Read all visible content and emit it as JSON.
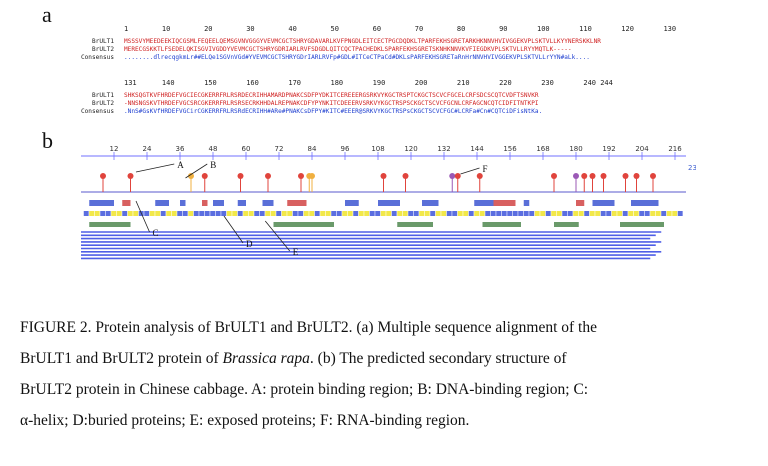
{
  "panels": {
    "a": "a",
    "b": "b"
  },
  "alignment": {
    "ruler1": "1        10        20        30        40        50        60        70        80        90       100       110       120       130",
    "ruler2": "131      140       150       160       170       180       190       200       210       220       230       240 244",
    "block1": [
      {
        "name": "BrULT1",
        "seq": "MSSSVYMEEDEEKIQCGSMLFEQEELQEMSGVNVGGGYVEVMCGCTSHRYGDAVARLKVFPNGDLEITCECTPGCDQDKLTPARFEKHSGRETARKHKNNVHVIVGGEKVPLSKTVLLKYYNERSKKLNR"
      },
      {
        "name": "BrULT2",
        "seq": "MERECGSKKTLFSEDELQKISGVIVGDDYVEVMCGCTSHRYGDRIARLRVFSDGDLQITCQCTPACHEDKLSPARFEKHSGRETSKNHKNNVKVFIEGDKVPLSKTVLLRYYMQTLK-----"
      },
      {
        "name": "Consensus",
        "seq": "........dlrecqgkmLr##ELQe1SGVnVGd#YVEVMCGCTSHRYGDrIARLRVFp#GDL#ITCeCTPaCd#DKLsPARFEKHSGRETaRnHrNNVHVIVGGEKVPLSKTVLLrYYN#aLk...."
      }
    ],
    "block2": [
      {
        "name": "BrULT1",
        "seq": "SHKSQGTKVFHRDEFVGCIECGKERRFRLRSRDECRIHHAMARDPNAKCSDFPYDKITCEREEERGSRKVYKGCTRSPTCKGCTSCVCFGCELCRFSDCSCQTCVDFTSNVKR"
      },
      {
        "name": "BrULT2",
        "seq": "-NNSNGSKVTHRDEFVGCSRCGKERRFRLRSRSECRKHHDALREPNAKCDFYPYNKITCDEEERVSRKVYKGCTRSPSCKGCTSCVCFGCNLCRFAGCNCQTCIDFITNTKPI"
      },
      {
        "name": "Consensus",
        "seq": ".NnS#GsKVfHRDEFVGCirCGKERRFRLRSRdECRIHH#ARe#PNAKCsDFPY#KITC#EEER@SRKVYKGCTRSPsCKGCTSCVCFGC#LCRFa#Cn#CQTCiDFisNtKa."
      }
    ]
  },
  "structure": {
    "ruler_ticks": [
      "12",
      "24",
      "36",
      "48",
      "60",
      "72",
      "84",
      "96",
      "108",
      "120",
      "132",
      "144",
      "156",
      "168",
      "180",
      "192",
      "204",
      "216"
    ],
    "end_label": "23",
    "annotations": [
      "A",
      "B",
      "C",
      "D",
      "E",
      "F"
    ],
    "colors": {
      "protein_binding": "#e0443c",
      "dna_binding": "#f0b040",
      "rna_binding": "#9b59b6",
      "helix": "#5a6fd8",
      "buried": "#f2e84a",
      "exposed": "#5b6ee0",
      "strand": "#d86060",
      "coil": "#6a9a6a"
    }
  },
  "caption": {
    "line1": "FIGURE 2. Protein analysis of BrULT1 and BrULT2. (a) Multiple sequence alignment of the",
    "line2_pre": "BrULT1 and BrULT2 protein of ",
    "line2_italic": "Brassica rapa",
    "line2_post": ". (b) The predicted secondary structure of",
    "line3": "BrULT2 protein in Chinese cabbage. A: protein binding region; B: DNA-binding region; C:",
    "line4": "α-helix; D:buried proteins; E: exposed proteins; F: RNA-binding region."
  }
}
